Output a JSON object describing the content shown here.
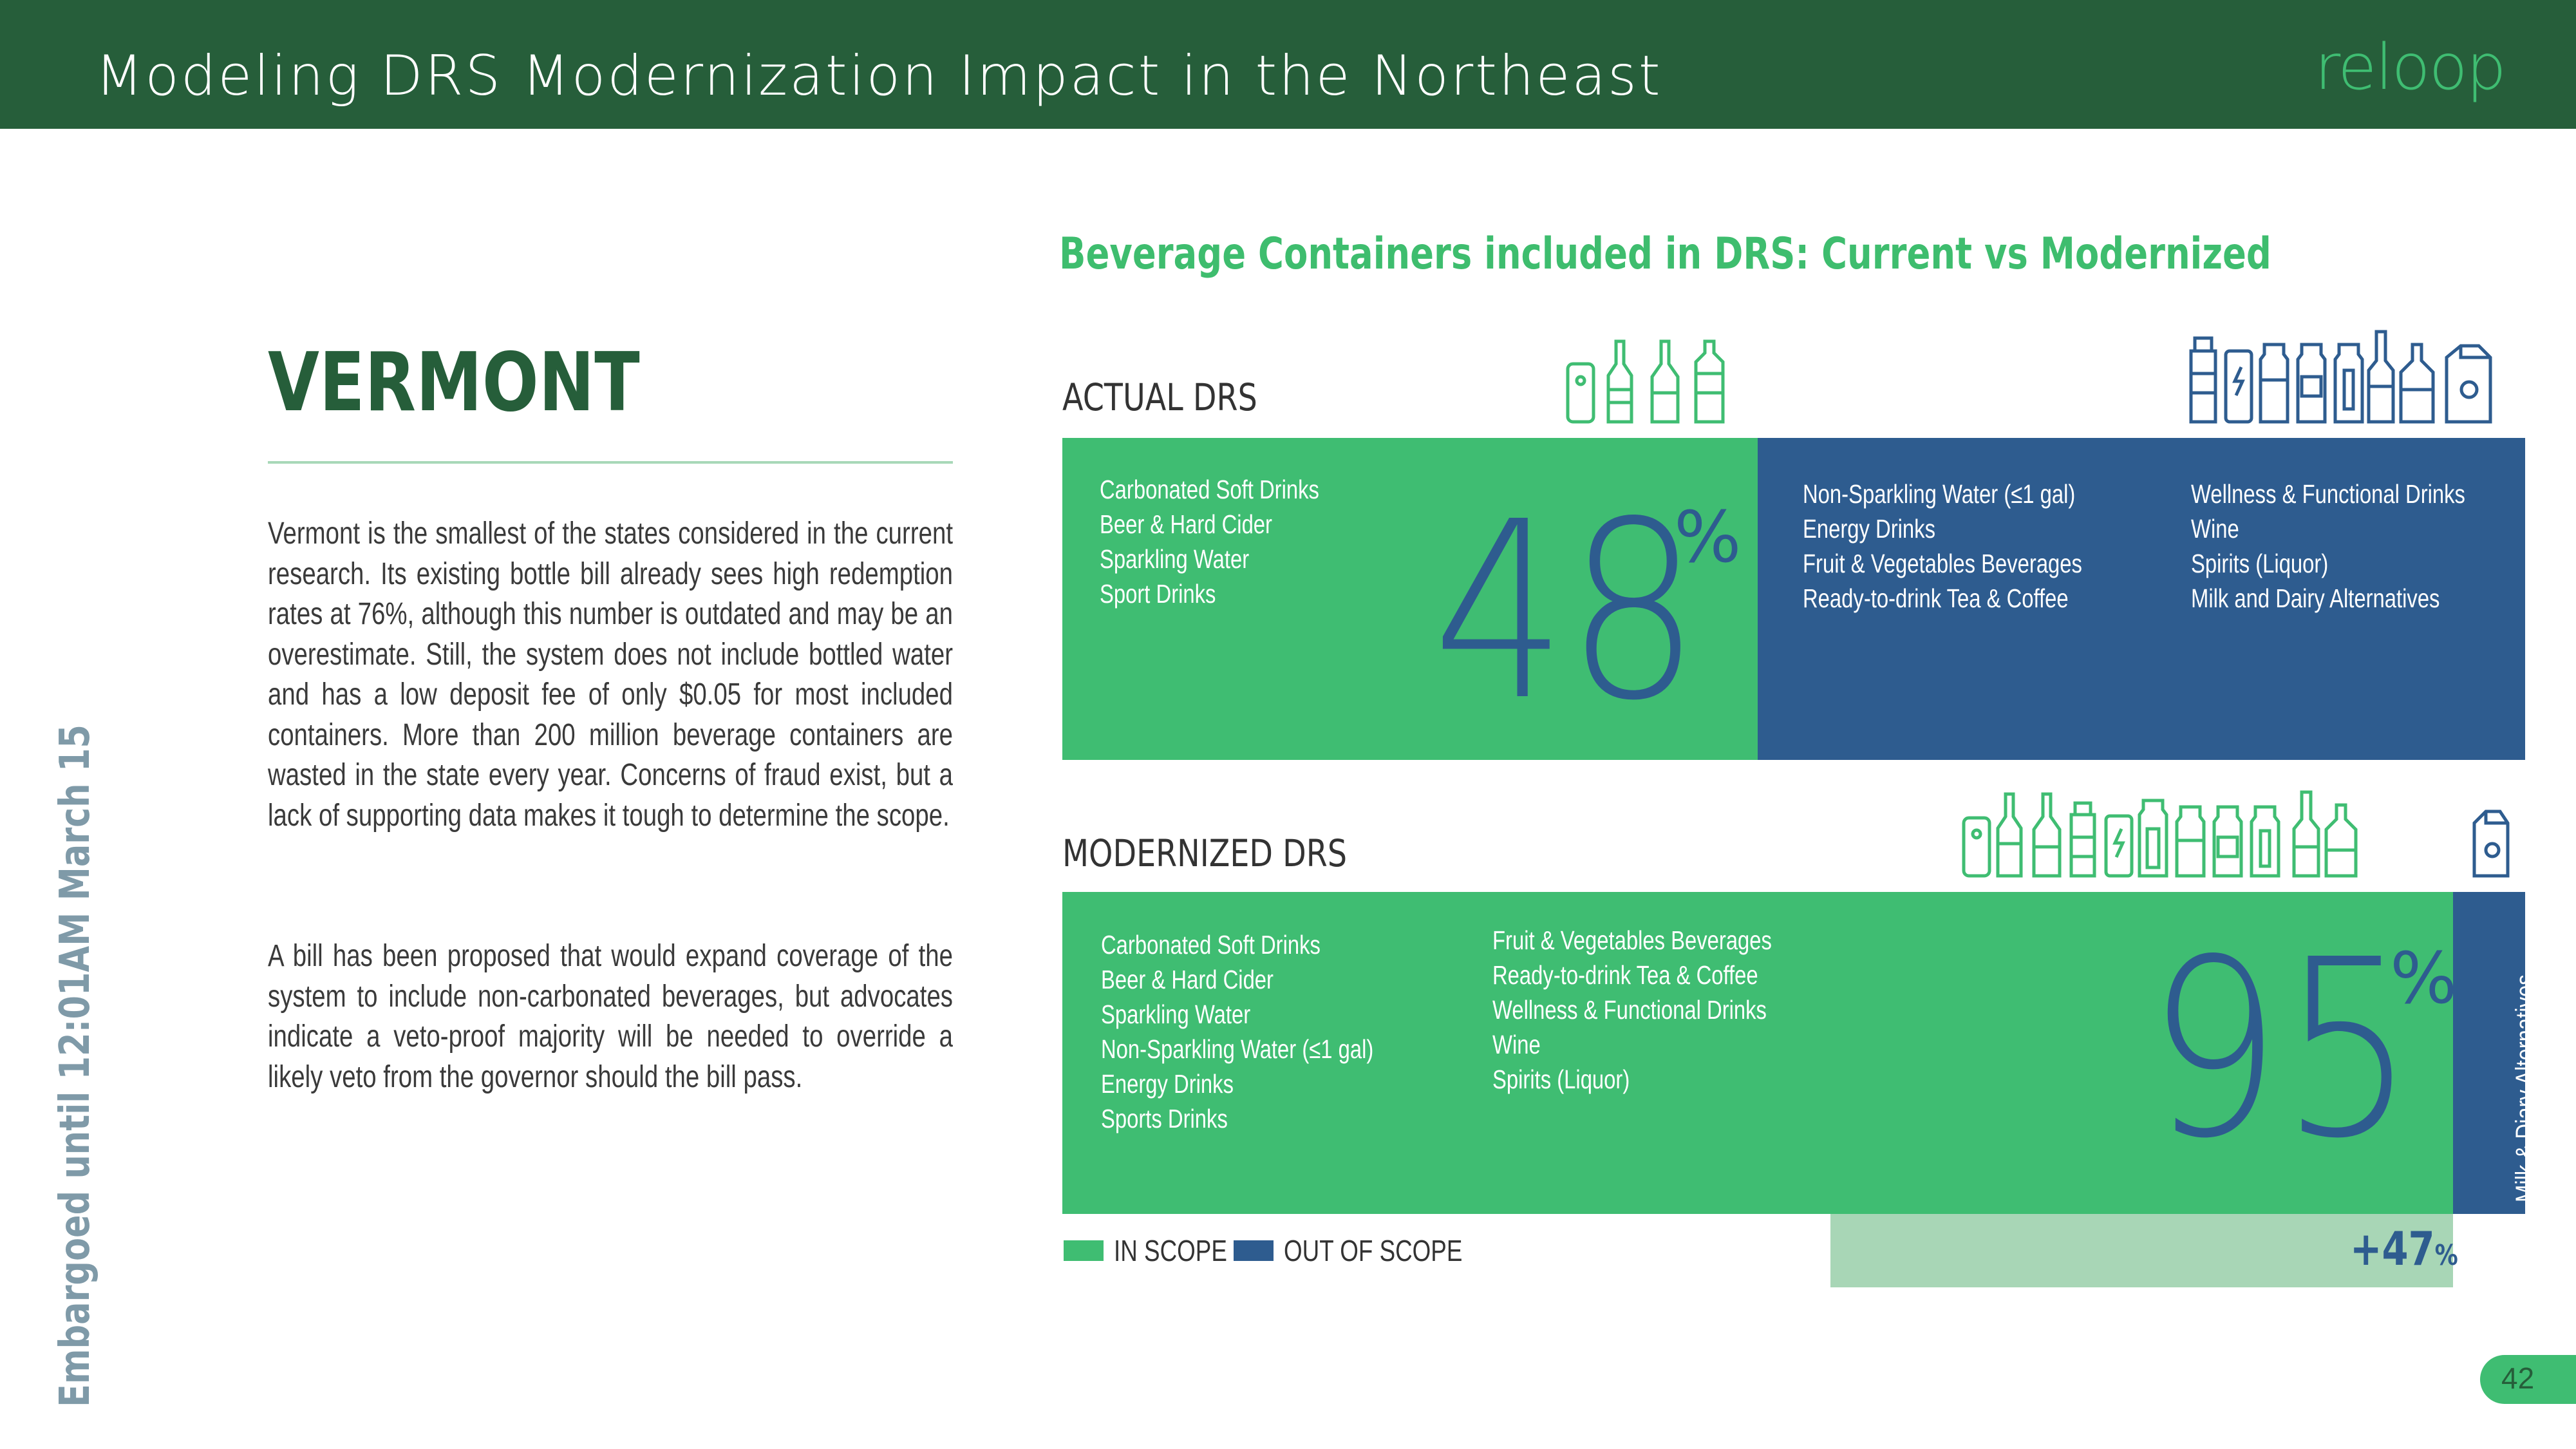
{
  "header": {
    "title": "Modeling DRS Modernization Impact in the Northeast",
    "logo_text": "reloop"
  },
  "left": {
    "state": "VERMONT",
    "paragraph_1": "Vermont is the smallest of the states considered in the current research. Its existing bottle bill already sees high redemption rates at 76%, although this number is outdated and may be an overestimate. Still, the system does not include bottled water and has a low deposit fee of only $0.05 for most included containers. More than 200 million beverage containers are wasted in the state every year. Concerns of fraud exist, but a lack of supporting data makes it tough to determine the scope.",
    "paragraph_2": "A bill has been proposed that would expand coverage of the system to include non-carbonated beverages, but advocates indicate a veto-proof majority will be needed to override a likely veto from the governor should the bill pass.",
    "embargo": "Embargoed until 12:01AM March 15"
  },
  "chart": {
    "title": "Beverage Containers included in DRS: Current vs Modernized",
    "actual": {
      "label": "ACTUAL DRS",
      "percent": "48",
      "percent_symbol": "%",
      "in_scope": [
        "Carbonated Soft Drinks",
        "Beer & Hard Cider",
        "Sparkling Water",
        "Sport Drinks"
      ],
      "out_scope_col1": [
        "Non-Sparkling Water (≤1 gal)",
        "Energy Drinks",
        "Fruit & Vegetables Beverages",
        "Ready-to-drink Tea & Coffee"
      ],
      "out_scope_col2": [
        "Wellness & Functional Drinks",
        "Wine",
        "Spirits (Liquor)",
        "Milk and Dairy Alternatives"
      ]
    },
    "modernized": {
      "label": "MODERNIZED DRS",
      "percent": "95",
      "percent_symbol": "%",
      "in_scope_col1": [
        "Carbonated Soft Drinks",
        "Beer & Hard Cider",
        "Sparkling Water",
        "Non-Sparkling Water (≤1 gal)",
        "Energy Drinks",
        "Sports Drinks"
      ],
      "in_scope_col2": [
        "Fruit & Vegetables Beverages",
        "Ready-to-drink Tea & Coffee",
        "Wellness & Functional Drinks",
        "Wine",
        "Spirits (Liquor)"
      ],
      "out_scope": "Milk & Diary Alternatives",
      "delta": "+47",
      "delta_symbol": "%"
    },
    "legend": {
      "in_scope": "IN SCOPE",
      "out_scope": "OUT OF SCOPE"
    },
    "colors": {
      "in_scope": "#3fbd72",
      "out_scope": "#2e5c8f",
      "delta": "#a8d6b6",
      "header": "#265e3a"
    }
  },
  "chart_data": {
    "type": "bar",
    "title": "Beverage Containers included in DRS: Current vs Modernized",
    "categories": [
      "ACTUAL DRS",
      "MODERNIZED DRS"
    ],
    "series": [
      {
        "name": "IN SCOPE",
        "values": [
          48,
          95
        ]
      },
      {
        "name": "OUT OF SCOPE",
        "values": [
          52,
          5
        ]
      }
    ],
    "annotations": [
      "+47%"
    ],
    "stacked": true,
    "orientation": "horizontal",
    "xlim": [
      0,
      100
    ]
  },
  "footer": {
    "page_number": "42"
  }
}
